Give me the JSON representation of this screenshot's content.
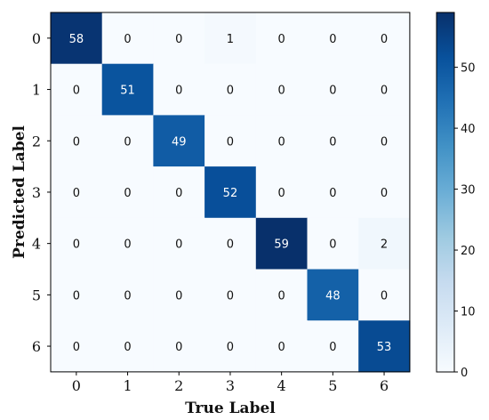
{
  "chart_data": {
    "type": "heatmap",
    "xlabel": "True Label",
    "ylabel": "Predicted Label",
    "x_categories": [
      "0",
      "1",
      "2",
      "3",
      "4",
      "5",
      "6"
    ],
    "y_categories": [
      "0",
      "1",
      "2",
      "3",
      "4",
      "5",
      "6"
    ],
    "values": [
      [
        58,
        0,
        0,
        1,
        0,
        0,
        0
      ],
      [
        0,
        51,
        0,
        0,
        0,
        0,
        0
      ],
      [
        0,
        0,
        49,
        0,
        0,
        0,
        0
      ],
      [
        0,
        0,
        0,
        52,
        0,
        0,
        0
      ],
      [
        0,
        0,
        0,
        0,
        59,
        0,
        2
      ],
      [
        0,
        0,
        0,
        0,
        0,
        48,
        0
      ],
      [
        0,
        0,
        0,
        0,
        0,
        0,
        53
      ]
    ],
    "colorbar": {
      "min": 0,
      "max": 59,
      "ticks": [
        0,
        10,
        20,
        30,
        40,
        50
      ],
      "colormap": "Blues",
      "colors": [
        "#f7fbff",
        "#deebf7",
        "#c6dbef",
        "#9ecae1",
        "#6baed6",
        "#4292c6",
        "#2171b5",
        "#08519c",
        "#08306b"
      ]
    }
  }
}
